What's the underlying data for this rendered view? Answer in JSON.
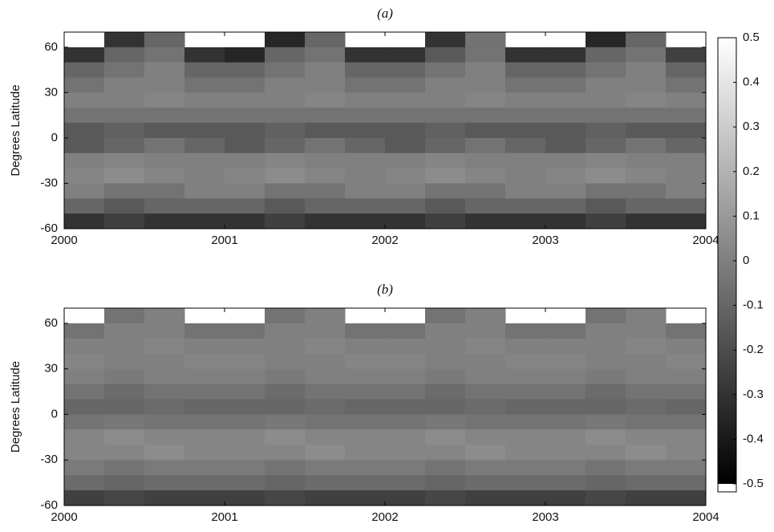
{
  "chart_data": [
    {
      "type": "heatmap",
      "title": "(a)",
      "y_label": "Degrees Latitude",
      "xbins": [
        2000,
        2000.25,
        2000.5,
        2000.75,
        2001,
        2001.25,
        2001.5,
        2001.75,
        2002,
        2002.25,
        2002.5,
        2002.75,
        2003,
        2003.25,
        2003.5,
        2003.75,
        2004
      ],
      "ybins": [
        70,
        60,
        50,
        40,
        30,
        20,
        10,
        0,
        -10,
        -20,
        -30,
        -40,
        -50,
        -60
      ],
      "xlim": [
        2000,
        2004
      ],
      "xticks": [
        2000,
        2001,
        2002,
        2003,
        2004
      ],
      "ylim": [
        -60,
        70
      ],
      "yticks": [
        60,
        30,
        0,
        -30,
        -60
      ],
      "z": [
        [
          null,
          -0.3,
          -0.1,
          null,
          null,
          -0.35,
          -0.1,
          null,
          null,
          -0.3,
          -0.05,
          null,
          null,
          -0.35,
          -0.1,
          null
        ],
        [
          -0.3,
          -0.1,
          -0.05,
          -0.3,
          -0.35,
          -0.1,
          -0.05,
          -0.3,
          -0.3,
          -0.15,
          -0.05,
          -0.3,
          -0.3,
          -0.1,
          -0.05,
          -0.25
        ],
        [
          -0.1,
          -0.05,
          0,
          -0.1,
          -0.1,
          -0.05,
          0,
          -0.1,
          -0.1,
          -0.05,
          0,
          -0.1,
          -0.1,
          -0.05,
          0,
          -0.1
        ],
        [
          -0.05,
          0,
          0,
          -0.05,
          -0.05,
          0,
          0,
          -0.05,
          -0.05,
          0,
          0,
          -0.05,
          -0.05,
          0,
          0,
          -0.05
        ],
        [
          0,
          0,
          0.02,
          0,
          0,
          0,
          0.02,
          0,
          0,
          0,
          0.02,
          0,
          0,
          0,
          0.02,
          0
        ],
        [
          -0.05,
          -0.05,
          -0.05,
          -0.05,
          -0.05,
          -0.05,
          -0.05,
          -0.05,
          -0.05,
          -0.05,
          -0.05,
          -0.05,
          -0.05,
          -0.05,
          -0.05,
          -0.05
        ],
        [
          -0.15,
          -0.12,
          -0.15,
          -0.15,
          -0.15,
          -0.12,
          -0.15,
          -0.15,
          -0.15,
          -0.12,
          -0.15,
          -0.15,
          -0.15,
          -0.12,
          -0.15,
          -0.15
        ],
        [
          -0.15,
          -0.1,
          -0.05,
          -0.1,
          -0.15,
          -0.1,
          -0.05,
          -0.1,
          -0.15,
          -0.1,
          -0.05,
          -0.1,
          -0.15,
          -0.1,
          -0.05,
          -0.1
        ],
        [
          0,
          0.02,
          0,
          0,
          0,
          0.02,
          0,
          0,
          0,
          0.02,
          0,
          0,
          0,
          0.02,
          0,
          0
        ],
        [
          0.02,
          0.05,
          0.02,
          0,
          0.02,
          0.05,
          0.02,
          0,
          0.02,
          0.05,
          0.02,
          0,
          0.02,
          0.05,
          0.02,
          0
        ],
        [
          0,
          -0.05,
          -0.05,
          0,
          0,
          -0.05,
          -0.05,
          0,
          0,
          -0.05,
          -0.05,
          0,
          0,
          -0.05,
          -0.05,
          0
        ],
        [
          -0.1,
          -0.15,
          -0.1,
          -0.1,
          -0.1,
          -0.15,
          -0.1,
          -0.1,
          -0.1,
          -0.15,
          -0.1,
          -0.1,
          -0.1,
          -0.15,
          -0.1,
          -0.1
        ],
        [
          -0.3,
          -0.25,
          -0.3,
          -0.3,
          -0.3,
          -0.25,
          -0.3,
          -0.3,
          -0.3,
          -0.25,
          -0.3,
          -0.3,
          -0.3,
          -0.25,
          -0.3,
          -0.3
        ]
      ]
    },
    {
      "type": "heatmap",
      "title": "(b)",
      "y_label": "Degrees Latitude",
      "xbins": [
        2000,
        2000.25,
        2000.5,
        2000.75,
        2001,
        2001.25,
        2001.5,
        2001.75,
        2002,
        2002.25,
        2002.5,
        2002.75,
        2003,
        2003.25,
        2003.5,
        2003.75,
        2004
      ],
      "ybins": [
        70,
        60,
        50,
        40,
        30,
        20,
        10,
        0,
        -10,
        -20,
        -30,
        -40,
        -50,
        -60
      ],
      "xlim": [
        2000,
        2004
      ],
      "xticks": [
        2000,
        2001,
        2002,
        2003,
        2004
      ],
      "ylim": [
        -60,
        70
      ],
      "yticks": [
        60,
        30,
        0,
        -30,
        -60
      ],
      "z": [
        [
          null,
          -0.05,
          0,
          null,
          null,
          -0.05,
          0,
          null,
          null,
          -0.05,
          0,
          null,
          null,
          -0.05,
          0,
          null
        ],
        [
          -0.05,
          0,
          0,
          -0.05,
          -0.05,
          0,
          0,
          -0.05,
          -0.05,
          0,
          0,
          -0.05,
          -0.05,
          0,
          0,
          -0.05
        ],
        [
          0,
          0,
          0.02,
          0,
          0,
          0,
          0.02,
          0,
          0,
          0,
          0.02,
          0,
          0,
          0,
          0.02,
          0
        ],
        [
          0.02,
          0,
          0,
          0.02,
          0.02,
          0,
          0,
          0.02,
          0.02,
          0,
          0,
          0.02,
          0.02,
          0,
          0,
          0.02
        ],
        [
          0,
          -0.02,
          0,
          0,
          0,
          -0.02,
          0,
          0,
          0,
          -0.02,
          0,
          0,
          0,
          -0.02,
          0,
          0
        ],
        [
          -0.05,
          -0.08,
          -0.05,
          -0.05,
          -0.05,
          -0.08,
          -0.05,
          -0.05,
          -0.05,
          -0.08,
          -0.05,
          -0.05,
          -0.05,
          -0.08,
          -0.05,
          -0.05
        ],
        [
          -0.1,
          -0.1,
          -0.08,
          -0.1,
          -0.1,
          -0.1,
          -0.08,
          -0.1,
          -0.1,
          -0.1,
          -0.08,
          -0.1,
          -0.1,
          -0.1,
          -0.08,
          -0.1
        ],
        [
          -0.05,
          -0.03,
          -0.05,
          -0.05,
          -0.05,
          -0.03,
          -0.05,
          -0.05,
          -0.05,
          -0.03,
          -0.05,
          -0.05,
          -0.05,
          -0.03,
          -0.05,
          -0.05
        ],
        [
          0.02,
          0.05,
          0.02,
          0.02,
          0.02,
          0.05,
          0.02,
          0.02,
          0.02,
          0.05,
          0.02,
          0.02,
          0.02,
          0.05,
          0.02,
          0.02
        ],
        [
          0.02,
          0.02,
          0.05,
          0.02,
          0.02,
          0.02,
          0.05,
          0.02,
          0.02,
          0.02,
          0.05,
          0.02,
          0.02,
          0.02,
          0.05,
          0.02
        ],
        [
          -0.02,
          -0.05,
          -0.02,
          -0.02,
          -0.02,
          -0.05,
          -0.02,
          -0.02,
          -0.02,
          -0.05,
          -0.02,
          -0.02,
          -0.02,
          -0.05,
          -0.02,
          -0.02
        ],
        [
          -0.08,
          -0.1,
          -0.08,
          -0.08,
          -0.08,
          -0.1,
          -0.08,
          -0.08,
          -0.08,
          -0.1,
          -0.08,
          -0.08,
          -0.08,
          -0.1,
          -0.08,
          -0.08
        ],
        [
          -0.25,
          -0.22,
          -0.25,
          -0.25,
          -0.25,
          -0.22,
          -0.25,
          -0.25,
          -0.25,
          -0.22,
          -0.25,
          -0.25,
          -0.25,
          -0.22,
          -0.25,
          -0.25
        ]
      ]
    }
  ],
  "colorbar": {
    "lim": [
      -0.5,
      0.5
    ],
    "ticks": [
      0.5,
      0.4,
      0.3,
      0.2,
      0.1,
      0,
      -0.1,
      -0.2,
      -0.3,
      -0.4,
      -0.5
    ]
  }
}
